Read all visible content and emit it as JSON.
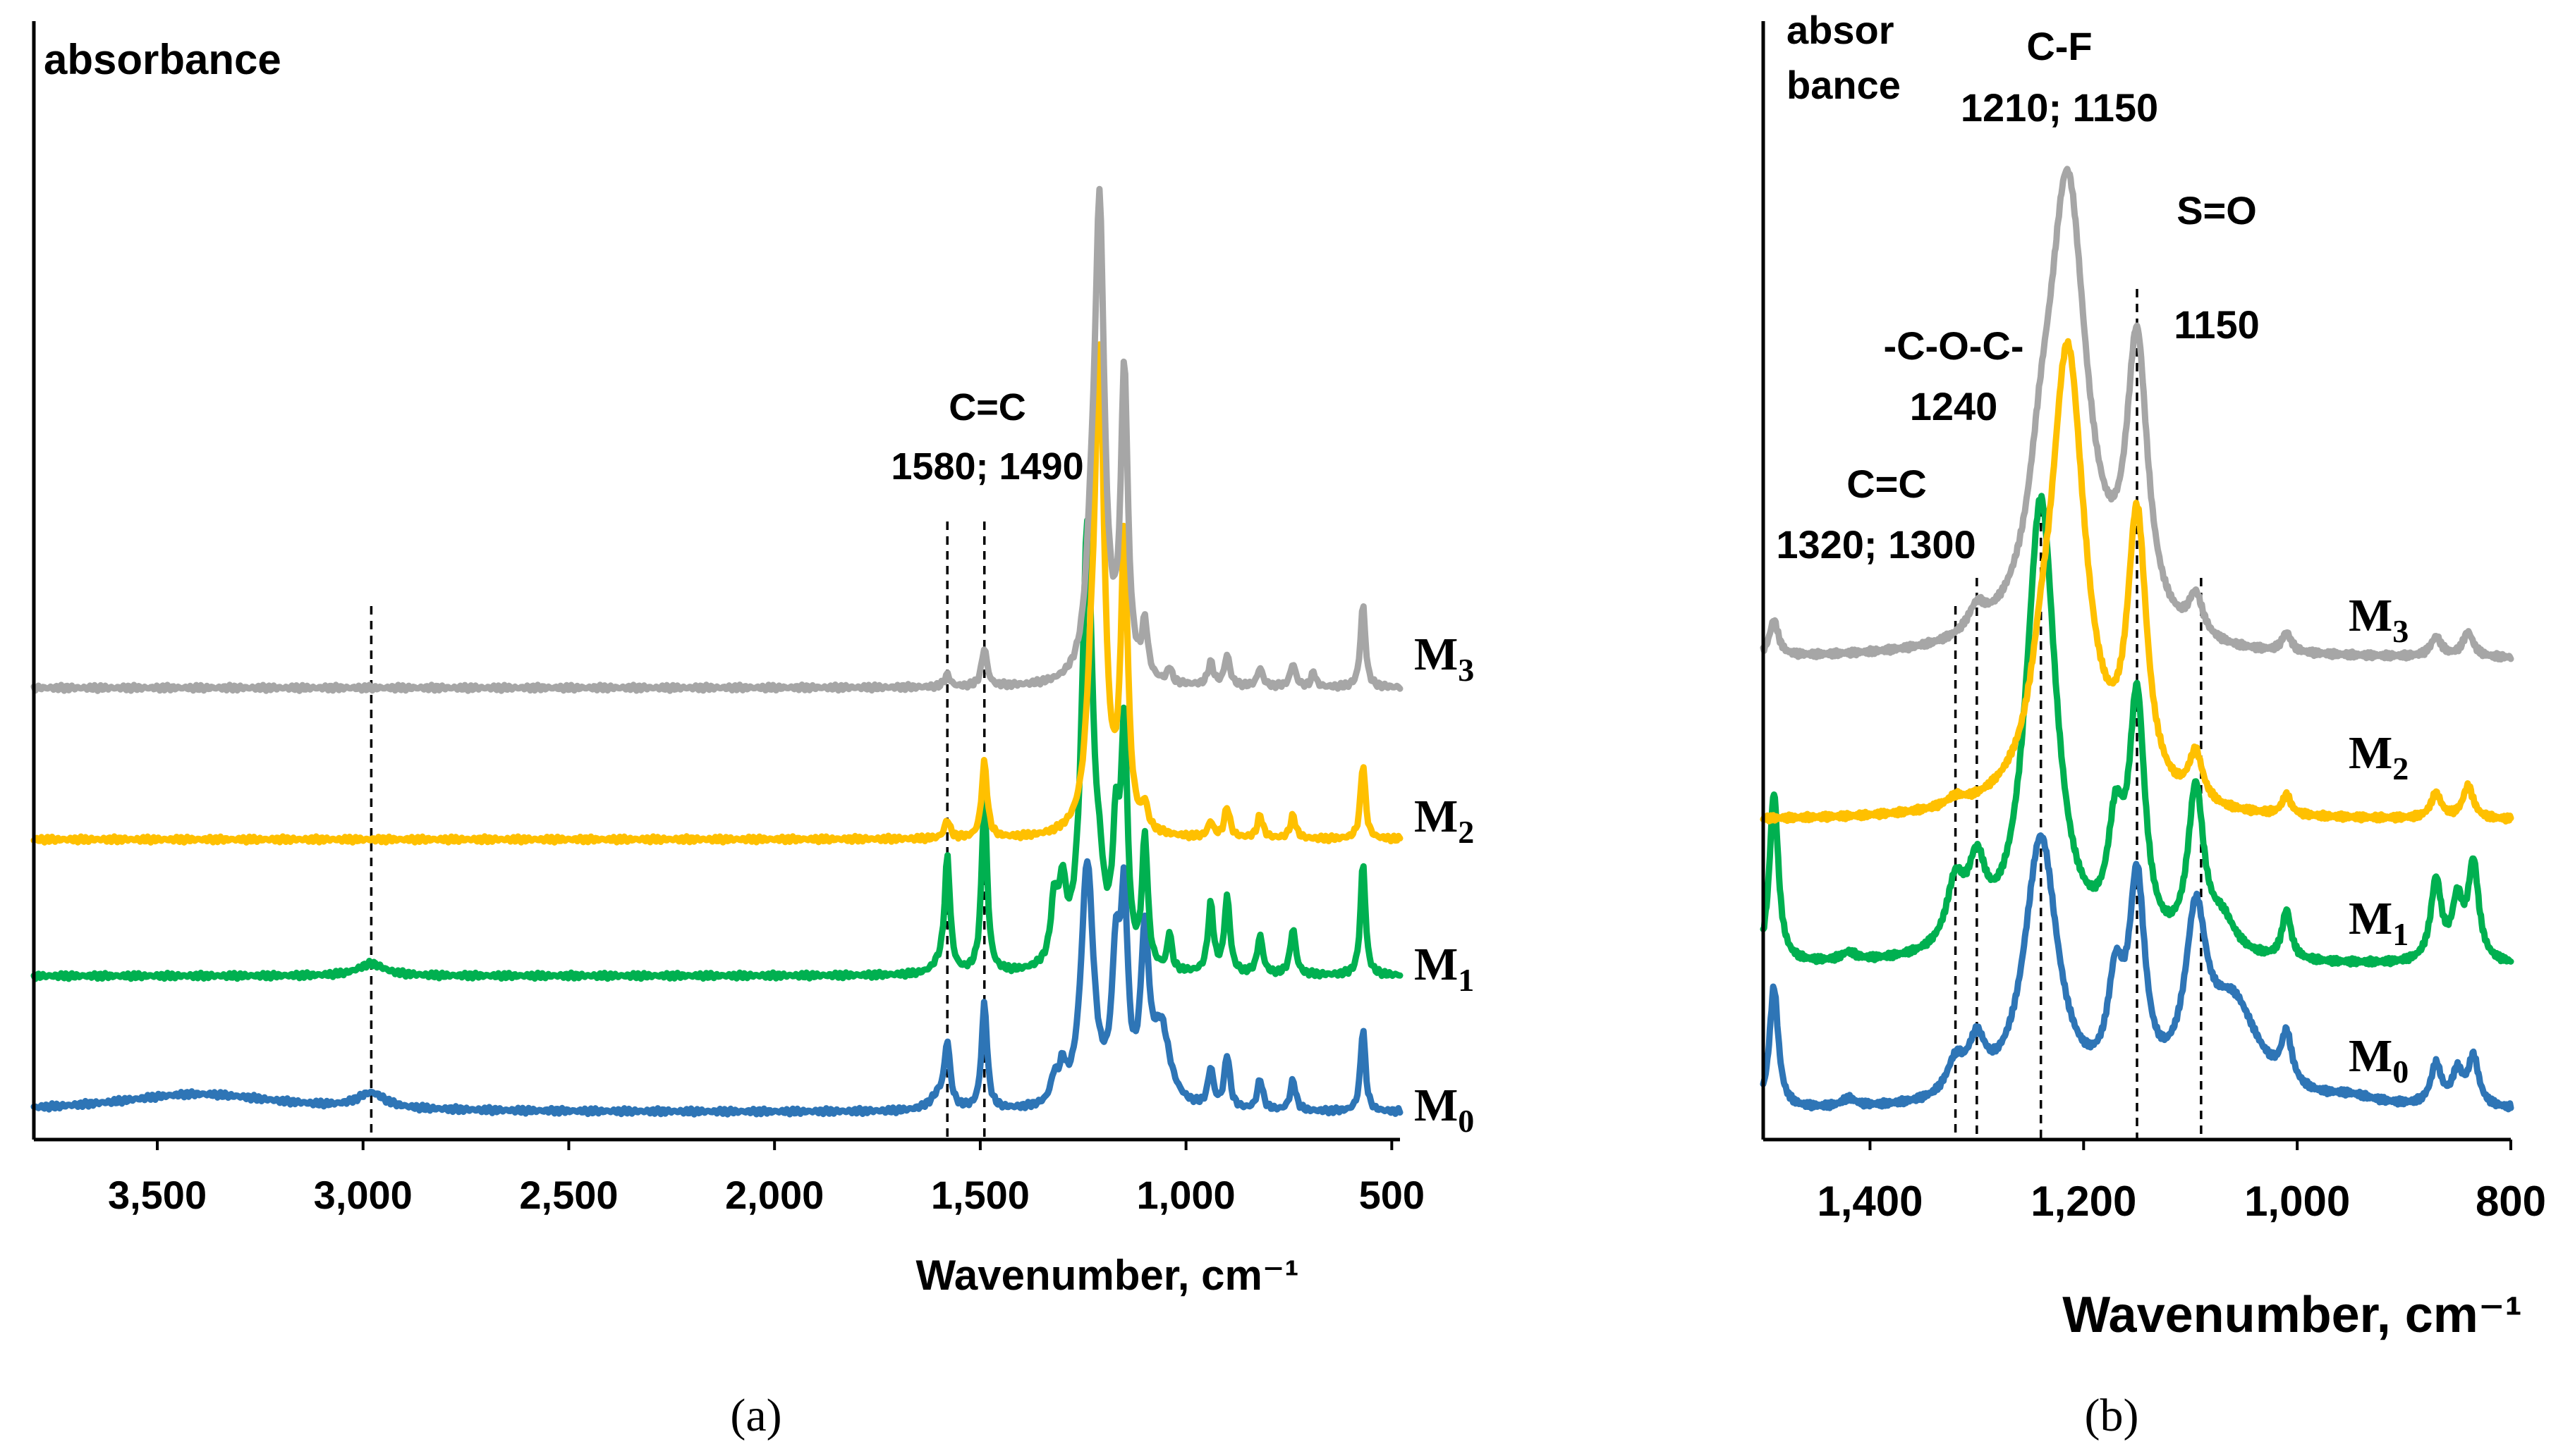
{
  "colors": {
    "M3": "#a6a6a6",
    "M2": "#ffc000",
    "M1": "#00b050",
    "M0": "#2e75b6",
    "axis": "#000000"
  },
  "chart_data": [
    {
      "panel": "(a)",
      "type": "line",
      "title": "",
      "xlabel": "Wavenumber, cm⁻¹",
      "ylabel": "absorbance",
      "xlim": [
        3800,
        480
      ],
      "x_reversed": true,
      "xticks": [
        3500,
        3000,
        2500,
        2000,
        1500,
        1000,
        500
      ],
      "xtick_labels": [
        "3,500",
        "3,000",
        "2,500",
        "2,000",
        "1,500",
        "1,000",
        "500"
      ],
      "y_units": "offset absorbance (no ticks)",
      "ylim": [
        0,
        6.6
      ],
      "marker_lines": [
        2980,
        1580,
        1490
      ],
      "annotations": [
        {
          "lines": [
            "C=C",
            "1580; 1490"
          ]
        }
      ],
      "series": [
        {
          "key": "M3",
          "name": "M",
          "sub": "3",
          "baseline": 2.9,
          "peaks": [
            [
              1580,
              0.08,
              8
            ],
            [
              1490,
              0.25,
              8
            ],
            [
              1230,
              0.6,
              15
            ],
            [
              1210,
              3.0,
              14
            ],
            [
              1150,
              2.0,
              10
            ],
            [
              1100,
              0.35,
              8
            ],
            [
              1040,
              0.1,
              6
            ],
            [
              940,
              0.15,
              8
            ],
            [
              900,
              0.2,
              8
            ],
            [
              820,
              0.12,
              8
            ],
            [
              740,
              0.15,
              8
            ],
            [
              690,
              0.1,
              6
            ],
            [
              570,
              0.55,
              7
            ]
          ]
        },
        {
          "key": "M2",
          "name": "M",
          "sub": "2",
          "baseline": 1.9,
          "peaks": [
            [
              1580,
              0.12,
              8
            ],
            [
              1490,
              0.5,
              8
            ],
            [
              1230,
              0.6,
              15
            ],
            [
              1210,
              3.0,
              14
            ],
            [
              1150,
              1.9,
              10
            ],
            [
              1100,
              0.15,
              8
            ],
            [
              940,
              0.1,
              8
            ],
            [
              900,
              0.2,
              8
            ],
            [
              820,
              0.15,
              8
            ],
            [
              740,
              0.15,
              8
            ],
            [
              570,
              0.5,
              7
            ]
          ]
        },
        {
          "key": "M1",
          "name": "M",
          "sub": "1",
          "baseline": 1.0,
          "peaks": [
            [
              2980,
              0.08,
              40
            ],
            [
              1600,
              0.05,
              20
            ],
            [
              1580,
              0.75,
              8
            ],
            [
              1490,
              1.15,
              8
            ],
            [
              1320,
              0.4,
              10
            ],
            [
              1300,
              0.45,
              10
            ],
            [
              1240,
              2.9,
              16
            ],
            [
              1210,
              0.3,
              12
            ],
            [
              1170,
              0.8,
              10
            ],
            [
              1150,
              1.5,
              9
            ],
            [
              1100,
              0.85,
              8
            ],
            [
              1040,
              0.25,
              6
            ],
            [
              940,
              0.45,
              8
            ],
            [
              900,
              0.5,
              8
            ],
            [
              820,
              0.25,
              8
            ],
            [
              740,
              0.3,
              8
            ],
            [
              570,
              0.75,
              7
            ]
          ]
        },
        {
          "key": "M0",
          "name": "M",
          "sub": "0",
          "baseline": 0.1,
          "peaks": [
            [
              3400,
              0.12,
              250
            ],
            [
              2980,
              0.1,
              40
            ],
            [
              1600,
              0.1,
              25
            ],
            [
              1580,
              0.4,
              8
            ],
            [
              1490,
              0.7,
              8
            ],
            [
              1320,
              0.15,
              10
            ],
            [
              1300,
              0.2,
              10
            ],
            [
              1240,
              1.6,
              18
            ],
            [
              1170,
              0.9,
              12
            ],
            [
              1150,
              1.2,
              10
            ],
            [
              1100,
              1.05,
              12
            ],
            [
              1060,
              0.5,
              25
            ],
            [
              940,
              0.25,
              8
            ],
            [
              900,
              0.35,
              8
            ],
            [
              820,
              0.2,
              8
            ],
            [
              740,
              0.2,
              8
            ],
            [
              570,
              0.55,
              7
            ]
          ]
        }
      ]
    },
    {
      "panel": "(b)",
      "type": "line",
      "title": "",
      "xlabel": "Wavenumber, cm⁻¹",
      "ylabel_lines": [
        "absor",
        "bance"
      ],
      "xlim": [
        1500,
        800
      ],
      "x_reversed": true,
      "xticks": [
        1400,
        1200,
        1000,
        800
      ],
      "xtick_labels": [
        "1,400",
        "1,200",
        "1,000",
        "800"
      ],
      "y_units": "offset absorbance (no ticks)",
      "ylim": [
        0,
        6.2
      ],
      "marker_lines": [
        1320,
        1300,
        1240,
        1150,
        1090
      ],
      "annotations": [
        {
          "lines": [
            "C-F",
            "1210; 1150"
          ]
        },
        {
          "lines": [
            "S=O",
            "1150"
          ]
        },
        {
          "lines": [
            "-C-O-C-",
            "1240"
          ]
        },
        {
          "lines": [
            "C=C",
            "1320; 1300"
          ]
        }
      ],
      "series": [
        {
          "key": "M3",
          "name": "M",
          "sub": "3",
          "baseline": 2.9,
          "peaks": [
            [
              1490,
              0.22,
              5
            ],
            [
              1300,
              0.15,
              10
            ],
            [
              1240,
              0.5,
              14
            ],
            [
              1215,
              2.85,
              22
            ],
            [
              1150,
              1.75,
              12
            ],
            [
              1095,
              0.25,
              8
            ],
            [
              1010,
              0.12,
              5
            ],
            [
              870,
              0.12,
              6
            ],
            [
              840,
              0.15,
              6
            ]
          ]
        },
        {
          "key": "M2",
          "name": "M",
          "sub": "2",
          "baseline": 1.9,
          "peaks": [
            [
              1320,
              0.05,
              10
            ],
            [
              1240,
              0.3,
              12
            ],
            [
              1215,
              2.85,
              20
            ],
            [
              1150,
              1.7,
              11
            ],
            [
              1095,
              0.3,
              8
            ],
            [
              1010,
              0.12,
              5
            ],
            [
              870,
              0.15,
              6
            ],
            [
              840,
              0.2,
              6
            ]
          ]
        },
        {
          "key": "M1",
          "name": "M",
          "sub": "1",
          "baseline": 1.0,
          "peaks": [
            [
              1490,
              1.05,
              5
            ],
            [
              1420,
              0.05,
              8
            ],
            [
              1320,
              0.38,
              10
            ],
            [
              1300,
              0.45,
              10
            ],
            [
              1240,
              2.85,
              17
            ],
            [
              1170,
              0.65,
              9
            ],
            [
              1150,
              1.5,
              9
            ],
            [
              1095,
              1.0,
              9
            ],
            [
              1070,
              0.2,
              15
            ],
            [
              1010,
              0.3,
              5
            ],
            [
              870,
              0.5,
              6
            ],
            [
              850,
              0.35,
              6
            ],
            [
              835,
              0.6,
              6
            ]
          ]
        },
        {
          "key": "M0",
          "name": "M",
          "sub": "0",
          "baseline": 0.1,
          "peaks": [
            [
              1490,
              0.75,
              5
            ],
            [
              1420,
              0.05,
              8
            ],
            [
              1320,
              0.2,
              10
            ],
            [
              1300,
              0.3,
              10
            ],
            [
              1240,
              1.65,
              19
            ],
            [
              1170,
              0.6,
              9
            ],
            [
              1150,
              1.25,
              9
            ],
            [
              1095,
              1.0,
              12
            ],
            [
              1060,
              0.6,
              30
            ],
            [
              1010,
              0.3,
              6
            ],
            [
              950,
              0.05,
              30
            ],
            [
              870,
              0.25,
              6
            ],
            [
              850,
              0.2,
              6
            ],
            [
              835,
              0.3,
              6
            ]
          ]
        }
      ]
    }
  ],
  "captions": {
    "a": "(a)",
    "b": "(b)"
  }
}
